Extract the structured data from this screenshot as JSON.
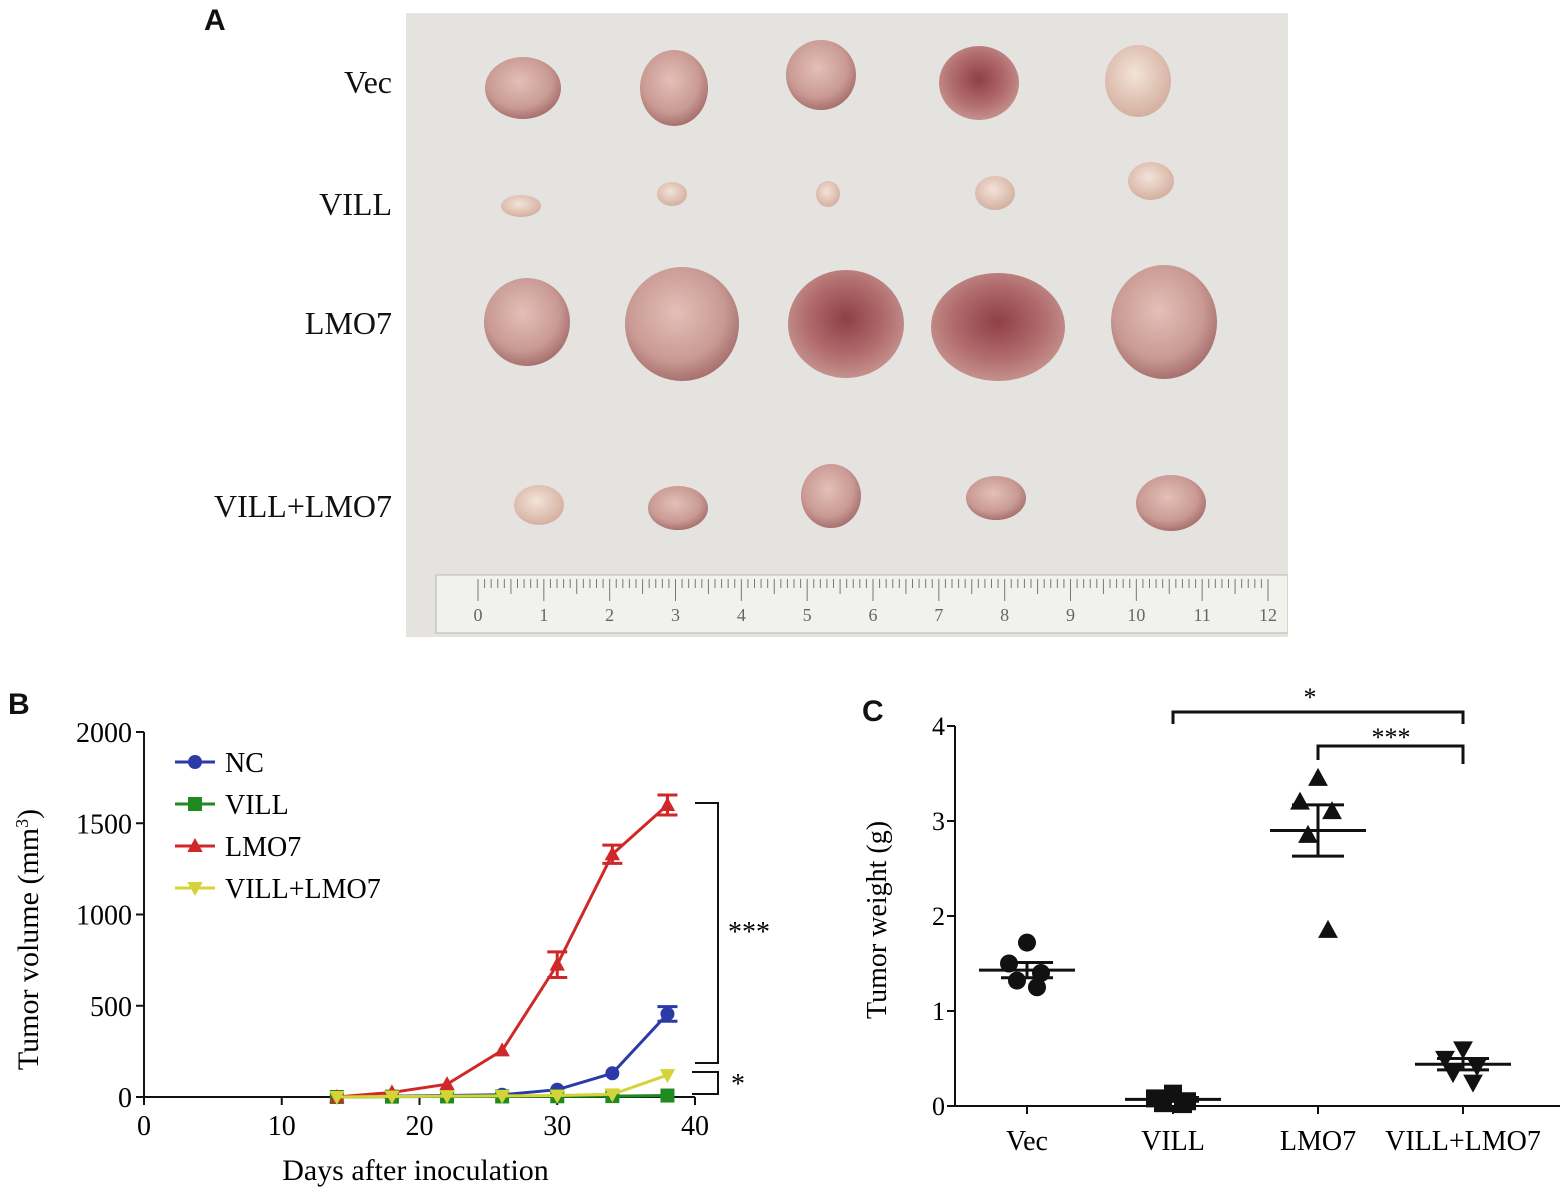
{
  "panel_a": {
    "letter": "A",
    "row_labels": [
      "Vec",
      "VILL",
      "LMO7",
      "VILL+LMO7"
    ],
    "ruler_labels": [
      "0",
      "1",
      "2",
      "3",
      "4",
      "5",
      "6",
      "7",
      "8",
      "9",
      "10",
      "11",
      "12"
    ],
    "colors": {
      "background": "#e4e3e0",
      "tumor": "#c99a93",
      "tumor_dark": "#a55a5e"
    }
  },
  "panel_b": {
    "letter": "B",
    "significance": [
      "***",
      "*"
    ]
  },
  "panel_c": {
    "letter": "C",
    "significance": [
      "*",
      "***"
    ]
  },
  "chart_data": [
    {
      "type": "line",
      "xlabel": "Days after inoculation",
      "ylabel": "Tumor volume (mm",
      "ylabel_sup": "3",
      "ylabel_end": ")",
      "xlim": [
        0,
        40
      ],
      "ylim": [
        0,
        2000
      ],
      "xticks": [
        "0",
        "10",
        "20",
        "30",
        "40"
      ],
      "yticks": [
        "0",
        "500",
        "1000",
        "1500",
        "2000"
      ],
      "x": [
        14,
        18,
        22,
        26,
        30,
        34,
        38
      ],
      "series": [
        {
          "name": "NC",
          "color": "#2b3aa6",
          "marker": "circle",
          "values": [
            0,
            5,
            8,
            12,
            40,
            130,
            455
          ],
          "errors": [
            0,
            0,
            0,
            0,
            0,
            0,
            40
          ]
        },
        {
          "name": "VILL",
          "color": "#1f8a1f",
          "marker": "square",
          "values": [
            0,
            2,
            3,
            3,
            4,
            5,
            8
          ],
          "errors": [
            0,
            0,
            0,
            0,
            0,
            0,
            0
          ]
        },
        {
          "name": "LMO7",
          "color": "#d02828",
          "marker": "triangle-up",
          "values": [
            0,
            25,
            70,
            255,
            725,
            1330,
            1600
          ],
          "errors": [
            0,
            0,
            0,
            0,
            70,
            50,
            55
          ]
        },
        {
          "name": "VILL+LMO7",
          "color": "#d4d43a",
          "marker": "triangle-down",
          "values": [
            0,
            3,
            5,
            6,
            8,
            15,
            120
          ],
          "errors": [
            0,
            0,
            0,
            0,
            0,
            0,
            0
          ]
        }
      ]
    },
    {
      "type": "scatter",
      "ylabel": "Tumor weight (g)",
      "ylim": [
        0,
        4
      ],
      "yticks": [
        "0",
        "1",
        "2",
        "3",
        "4"
      ],
      "categories": [
        "Vec",
        "VILL",
        "LMO7",
        "VILL+LMO7"
      ],
      "groups": [
        {
          "category": "Vec",
          "marker": "circle",
          "points": [
            1.72,
            1.5,
            1.4,
            1.32,
            1.25
          ],
          "mean": 1.43,
          "sem": 0.08
        },
        {
          "category": "VILL",
          "marker": "square",
          "points": [
            0.13,
            0.08,
            0.05,
            0.03,
            0.02
          ],
          "mean": 0.07,
          "sem": 0.02
        },
        {
          "category": "LMO7",
          "marker": "triangle-up",
          "points": [
            3.45,
            3.2,
            3.1,
            2.85,
            1.85
          ],
          "mean": 2.9,
          "sem": 0.27
        },
        {
          "category": "VILL+LMO7",
          "marker": "triangle-down",
          "points": [
            0.6,
            0.5,
            0.42,
            0.35,
            0.25
          ],
          "mean": 0.44,
          "sem": 0.06
        }
      ]
    }
  ]
}
